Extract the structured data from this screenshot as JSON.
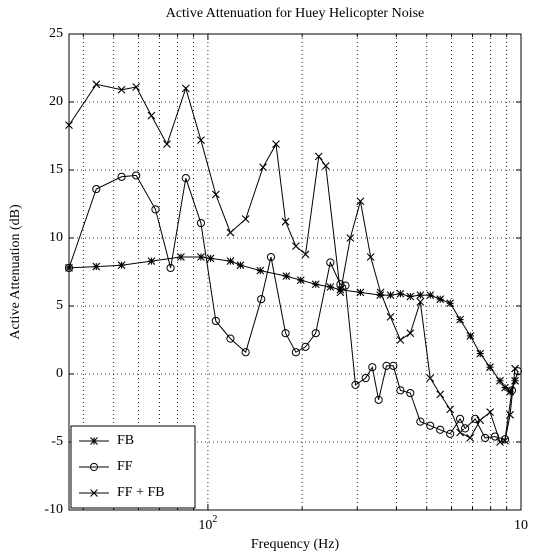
{
  "chart_data": {
    "type": "line",
    "title": "Active Attenuation for Huey Helicopter Noise",
    "xlabel": "Frequency (Hz)",
    "ylabel": "Active Attenuation (dB)",
    "xscale": "log",
    "xlim": [
      36,
      1000
    ],
    "xticks": [
      {
        "value": 100,
        "label": "10",
        "exponent": "2"
      },
      {
        "value": 1000,
        "label": "10"
      }
    ],
    "xminor": [
      40,
      50,
      60,
      70,
      80,
      90,
      200,
      300,
      400,
      500,
      600,
      700,
      800,
      900
    ],
    "ylim": [
      -10,
      25
    ],
    "yticks": [
      -10,
      -5,
      0,
      5,
      10,
      15,
      20,
      25
    ],
    "grid": true,
    "legend": "lower left",
    "series": [
      {
        "name": "FB",
        "marker": "asterisk",
        "color": "#000000",
        "x": [
          36,
          44,
          53,
          66,
          82,
          95,
          102,
          118,
          127,
          147,
          178,
          198,
          221,
          246,
          265,
          307,
          355,
          383,
          412,
          443,
          477,
          513,
          552,
          594,
          639,
          689,
          741,
          796,
          857,
          889,
          923,
          957
        ],
        "values": [
          7.8,
          7.9,
          8.0,
          8.3,
          8.6,
          8.6,
          8.5,
          8.3,
          8.0,
          7.6,
          7.2,
          6.9,
          6.6,
          6.4,
          6.2,
          6.0,
          5.8,
          5.8,
          5.9,
          5.7,
          5.8,
          5.8,
          5.5,
          5.2,
          4.0,
          2.8,
          1.5,
          0.5,
          -0.5,
          -1.0,
          -1.3,
          -0.5
        ]
      },
      {
        "name": "FF",
        "marker": "circle",
        "color": "#000000",
        "x": [
          36,
          44,
          53,
          59,
          68,
          76,
          85,
          95,
          106,
          118,
          132,
          148,
          159,
          177,
          191,
          205,
          221,
          246,
          265,
          275,
          296,
          319,
          335,
          351,
          372,
          391,
          412,
          443,
          477,
          513,
          552,
          594,
          639,
          663,
          714,
          768,
          826,
          889,
          936,
          978
        ],
        "values": [
          7.8,
          13.6,
          14.5,
          14.6,
          12.1,
          7.8,
          14.4,
          11.1,
          3.9,
          2.6,
          1.6,
          5.5,
          8.6,
          3.0,
          1.6,
          2.0,
          3.0,
          8.2,
          6.6,
          6.5,
          -0.8,
          -0.3,
          0.5,
          -1.9,
          0.6,
          0.6,
          -1.2,
          -1.4,
          -3.5,
          -3.8,
          -4.1,
          -4.4,
          -3.3,
          -4.0,
          -3.3,
          -4.7,
          -4.6,
          -4.8,
          -1.2,
          0.2
        ]
      },
      {
        "name": "FF + FB",
        "marker": "x",
        "color": "#000000",
        "x": [
          36,
          44,
          53,
          59,
          66,
          74,
          85,
          95,
          106,
          118,
          132,
          150,
          165,
          177,
          191,
          205,
          226,
          238,
          265,
          285,
          307,
          331,
          356,
          383,
          412,
          443,
          477,
          513,
          552,
          594,
          639,
          688,
          741,
          797,
          857,
          889,
          923,
          957
        ],
        "values": [
          18.3,
          21.3,
          20.9,
          21.1,
          19.0,
          16.9,
          21.0,
          17.2,
          13.2,
          10.4,
          11.4,
          15.2,
          16.9,
          11.2,
          9.4,
          8.8,
          16.0,
          15.3,
          6.0,
          10.0,
          12.7,
          8.6,
          6.0,
          4.2,
          2.5,
          3.0,
          5.3,
          -0.3,
          -1.5,
          -2.6,
          -4.3,
          -4.7,
          -3.4,
          -2.8,
          -5.0,
          -4.9,
          -3.0,
          0.4
        ]
      }
    ]
  }
}
